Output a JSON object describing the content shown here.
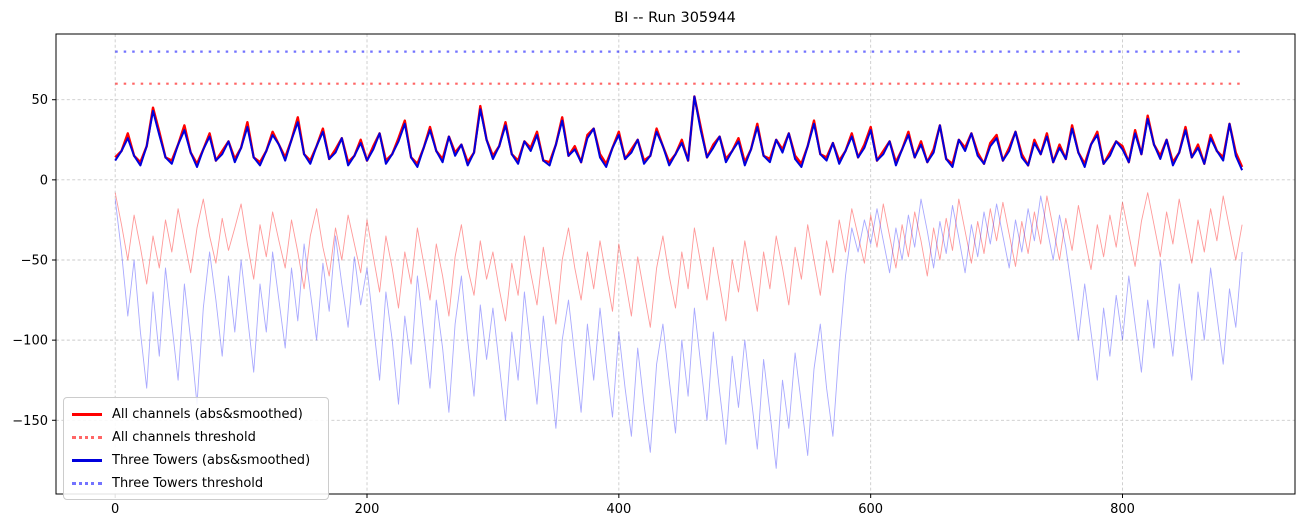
{
  "title": "BI -- Run 305944",
  "axes": {
    "xtick_labels": [
      "0",
      "200",
      "400",
      "600",
      "800"
    ],
    "ytick_labels": [
      "50",
      "0",
      "−50",
      "−100",
      "−150"
    ]
  },
  "legend": {
    "position": "lower left",
    "items": [
      {
        "label": "All channels (abs&smoothed)",
        "color": "#ff0000",
        "dash": "solid",
        "width": 2.4
      },
      {
        "label": "All channels threshold",
        "color": "rgba(255,0,0,0.6)",
        "dash": "dotted",
        "width": 2.2
      },
      {
        "label": "Three Towers (abs&smoothed)",
        "color": "#0000dd",
        "dash": "solid",
        "width": 2.2
      },
      {
        "label": "Three Towers threshold",
        "color": "rgba(0,0,255,0.55)",
        "dash": "dotted",
        "width": 2.2
      }
    ]
  },
  "colors": {
    "all_channels": "#ff0000",
    "three_towers": "#0000dd",
    "all_channels_threshold": "rgba(255,0,0,0.6)",
    "three_towers_threshold": "rgba(0,0,255,0.55)",
    "all_channels_raw": "rgba(255,0,0,0.4)",
    "three_towers_raw": "rgba(40,40,255,0.4)",
    "grid": "#cbcbcb",
    "spine": "#000000"
  },
  "chart_data": {
    "type": "line",
    "title": "BI -- Run 305944",
    "xlabel": "",
    "ylabel": "",
    "grid": true,
    "legend_position": "lower left",
    "xlim": [
      -47,
      937
    ],
    "ylim": [
      -196,
      91
    ],
    "xticks": [
      0,
      200,
      400,
      600,
      800
    ],
    "yticks": [
      50,
      0,
      -50,
      -100,
      -150
    ],
    "series": [
      {
        "name": "All channels raw",
        "in_legend": false,
        "kind": "values",
        "color": "rgba(255,0,0,0.4)",
        "width": 0.9,
        "dash": "solid",
        "x_start": 0,
        "x_step": 5,
        "values": [
          -8,
          -28,
          -50,
          -22,
          -42,
          -65,
          -35,
          -55,
          -25,
          -45,
          -18,
          -38,
          -58,
          -30,
          -12,
          -35,
          -52,
          -24,
          -44,
          -30,
          -15,
          -40,
          -62,
          -28,
          -48,
          -20,
          -38,
          -55,
          -25,
          -45,
          -68,
          -35,
          -18,
          -42,
          -60,
          -30,
          -50,
          -22,
          -40,
          -58,
          -25,
          -48,
          -70,
          -35,
          -55,
          -80,
          -45,
          -65,
          -30,
          -52,
          -75,
          -40,
          -60,
          -85,
          -48,
          -28,
          -55,
          -72,
          -38,
          -62,
          -45,
          -68,
          -88,
          -52,
          -72,
          -35,
          -58,
          -78,
          -42,
          -65,
          -90,
          -50,
          -30,
          -55,
          -75,
          -45,
          -68,
          -38,
          -60,
          -82,
          -40,
          -62,
          -85,
          -48,
          -70,
          -92,
          -55,
          -35,
          -60,
          -80,
          -45,
          -68,
          -30,
          -52,
          -75,
          -42,
          -65,
          -88,
          -50,
          -70,
          -38,
          -60,
          -82,
          -45,
          -68,
          -35,
          -55,
          -78,
          -42,
          -62,
          -28,
          -50,
          -72,
          -38,
          -58,
          -25,
          -45,
          -18,
          -35,
          -52,
          -22,
          -42,
          -15,
          -35,
          -55,
          -28,
          -48,
          -20,
          -38,
          -60,
          -30,
          -50,
          -24,
          -44,
          -12,
          -32,
          -52,
          -26,
          -46,
          -18,
          -38,
          -14,
          -34,
          -54,
          -26,
          -46,
          -20,
          -40,
          -10,
          -30,
          -50,
          -24,
          -44,
          -16,
          -36,
          -56,
          -28,
          -48,
          -22,
          -42,
          -14,
          -34,
          -54,
          -26,
          -8,
          -28,
          -48,
          -20,
          -40,
          -12,
          -32,
          -52,
          -25,
          -45,
          -18,
          -38,
          -10,
          -30,
          -50,
          -28
        ]
      },
      {
        "name": "Three Towers raw",
        "in_legend": false,
        "kind": "values",
        "color": "rgba(40,40,255,0.4)",
        "width": 0.9,
        "dash": "solid",
        "x_start": 0,
        "x_step": 5,
        "values": [
          -12,
          -45,
          -85,
          -50,
          -95,
          -130,
          -70,
          -110,
          -55,
          -90,
          -125,
          -65,
          -100,
          -140,
          -80,
          -45,
          -75,
          -110,
          -60,
          -95,
          -50,
          -85,
          -120,
          -65,
          -95,
          -45,
          -75,
          -105,
          -55,
          -88,
          -40,
          -70,
          -100,
          -52,
          -82,
          -35,
          -65,
          -92,
          -48,
          -78,
          -55,
          -90,
          -125,
          -70,
          -100,
          -140,
          -85,
          -115,
          -60,
          -95,
          -130,
          -75,
          -105,
          -145,
          -90,
          -60,
          -100,
          -135,
          -78,
          -112,
          -80,
          -115,
          -150,
          -95,
          -125,
          -70,
          -105,
          -140,
          -85,
          -118,
          -155,
          -100,
          -75,
          -110,
          -145,
          -90,
          -125,
          -80,
          -115,
          -148,
          -95,
          -130,
          -160,
          -105,
          -140,
          -170,
          -115,
          -90,
          -125,
          -158,
          -100,
          -135,
          -80,
          -115,
          -150,
          -95,
          -132,
          -165,
          -110,
          -142,
          -100,
          -135,
          -168,
          -112,
          -145,
          -180,
          -125,
          -155,
          -108,
          -140,
          -172,
          -118,
          -90,
          -130,
          -160,
          -105,
          -60,
          -30,
          -45,
          -25,
          -40,
          -18,
          -38,
          -58,
          -30,
          -50,
          -22,
          -42,
          -12,
          -32,
          -55,
          -26,
          -46,
          -16,
          -36,
          -58,
          -28,
          -48,
          -20,
          -40,
          -15,
          -35,
          -55,
          -25,
          -45,
          -18,
          -38,
          -10,
          -30,
          -50,
          -22,
          -42,
          -70,
          -100,
          -65,
          -95,
          -125,
          -80,
          -110,
          -72,
          -100,
          -60,
          -90,
          -120,
          -75,
          -105,
          -50,
          -80,
          -110,
          -65,
          -95,
          -125,
          -70,
          -100,
          -55,
          -85,
          -115,
          -68,
          -92,
          -45
        ]
      },
      {
        "name": "All channels threshold",
        "in_legend": true,
        "kind": "hline",
        "color": "rgba(255,0,0,0.6)",
        "width": 2.2,
        "dash": "dotted",
        "value": 60,
        "x_range": [
          0,
          895
        ]
      },
      {
        "name": "Three Towers threshold",
        "in_legend": true,
        "kind": "hline",
        "color": "rgba(0,0,255,0.55)",
        "width": 2.2,
        "dash": "dotted",
        "value": 80,
        "x_range": [
          0,
          895
        ]
      },
      {
        "name": "All channels (abs&smoothed)",
        "in_legend": true,
        "kind": "values",
        "color": "#ff0000",
        "width": 2.4,
        "dash": "solid",
        "x_start": 0,
        "x_step": 5,
        "values": [
          14,
          18,
          29,
          15,
          11,
          21,
          45,
          30,
          14,
          12,
          22,
          34,
          17,
          10,
          19,
          29,
          12,
          18,
          24,
          13,
          20,
          36,
          14,
          11,
          18,
          30,
          22,
          14,
          25,
          39,
          16,
          12,
          21,
          32,
          13,
          19,
          26,
          11,
          15,
          25,
          12,
          21,
          29,
          12,
          16,
          26,
          37,
          14,
          10,
          20,
          33,
          18,
          13,
          27,
          17,
          22,
          11,
          17,
          46,
          25,
          15,
          21,
          36,
          16,
          12,
          24,
          20,
          30,
          12,
          11,
          22,
          39,
          15,
          21,
          11,
          28,
          32,
          16,
          10,
          20,
          30,
          13,
          19,
          25,
          12,
          15,
          32,
          21,
          11,
          16,
          25,
          12,
          52,
          33,
          14,
          22,
          27,
          13,
          18,
          26,
          11,
          19,
          35,
          15,
          13,
          25,
          19,
          29,
          15,
          10,
          21,
          37,
          16,
          14,
          23,
          12,
          18,
          29,
          14,
          22,
          33,
          12,
          18,
          24,
          11,
          19,
          30,
          14,
          24,
          11,
          19,
          34,
          13,
          10,
          25,
          20,
          29,
          17,
          10,
          23,
          28,
          12,
          20,
          30,
          16,
          9,
          25,
          16,
          29,
          11,
          22,
          13,
          34,
          17,
          10,
          22,
          30,
          10,
          17,
          24,
          21,
          11,
          31,
          16,
          40,
          22,
          15,
          25,
          11,
          17,
          33,
          14,
          22,
          10,
          28,
          18,
          14,
          35,
          17,
          8
        ]
      },
      {
        "name": "Three Towers (abs&smoothed)",
        "in_legend": true,
        "kind": "values",
        "color": "#0000dd",
        "width": 2.0,
        "dash": "solid",
        "x_start": 0,
        "x_step": 5,
        "values": [
          12,
          18,
          26,
          15,
          9,
          21,
          43,
          28,
          14,
          10,
          22,
          31,
          17,
          8,
          19,
          27,
          12,
          16,
          24,
          11,
          20,
          33,
          14,
          9,
          18,
          28,
          22,
          12,
          25,
          36,
          16,
          10,
          21,
          30,
          13,
          17,
          26,
          9,
          15,
          23,
          12,
          19,
          29,
          10,
          16,
          24,
          35,
          14,
          8,
          20,
          31,
          18,
          11,
          27,
          15,
          22,
          9,
          17,
          44,
          25,
          13,
          21,
          34,
          16,
          10,
          24,
          18,
          28,
          12,
          9,
          22,
          37,
          15,
          19,
          11,
          26,
          32,
          14,
          8,
          20,
          28,
          13,
          17,
          25,
          10,
          15,
          30,
          21,
          9,
          16,
          23,
          12,
          52,
          31,
          14,
          20,
          27,
          11,
          18,
          24,
          9,
          19,
          33,
          15,
          11,
          25,
          17,
          29,
          13,
          8,
          21,
          35,
          16,
          12,
          23,
          10,
          18,
          27,
          14,
          20,
          31,
          12,
          16,
          24,
          9,
          19,
          28,
          14,
          22,
          11,
          17,
          34,
          13,
          8,
          25,
          18,
          29,
          15,
          10,
          21,
          26,
          12,
          18,
          30,
          14,
          9,
          23,
          16,
          27,
          11,
          20,
          13,
          32,
          17,
          8,
          22,
          28,
          10,
          15,
          24,
          19,
          11,
          29,
          16,
          38,
          22,
          13,
          25,
          9,
          17,
          31,
          14,
          20,
          10,
          26,
          18,
          12,
          35,
          15,
          6
        ]
      }
    ]
  }
}
